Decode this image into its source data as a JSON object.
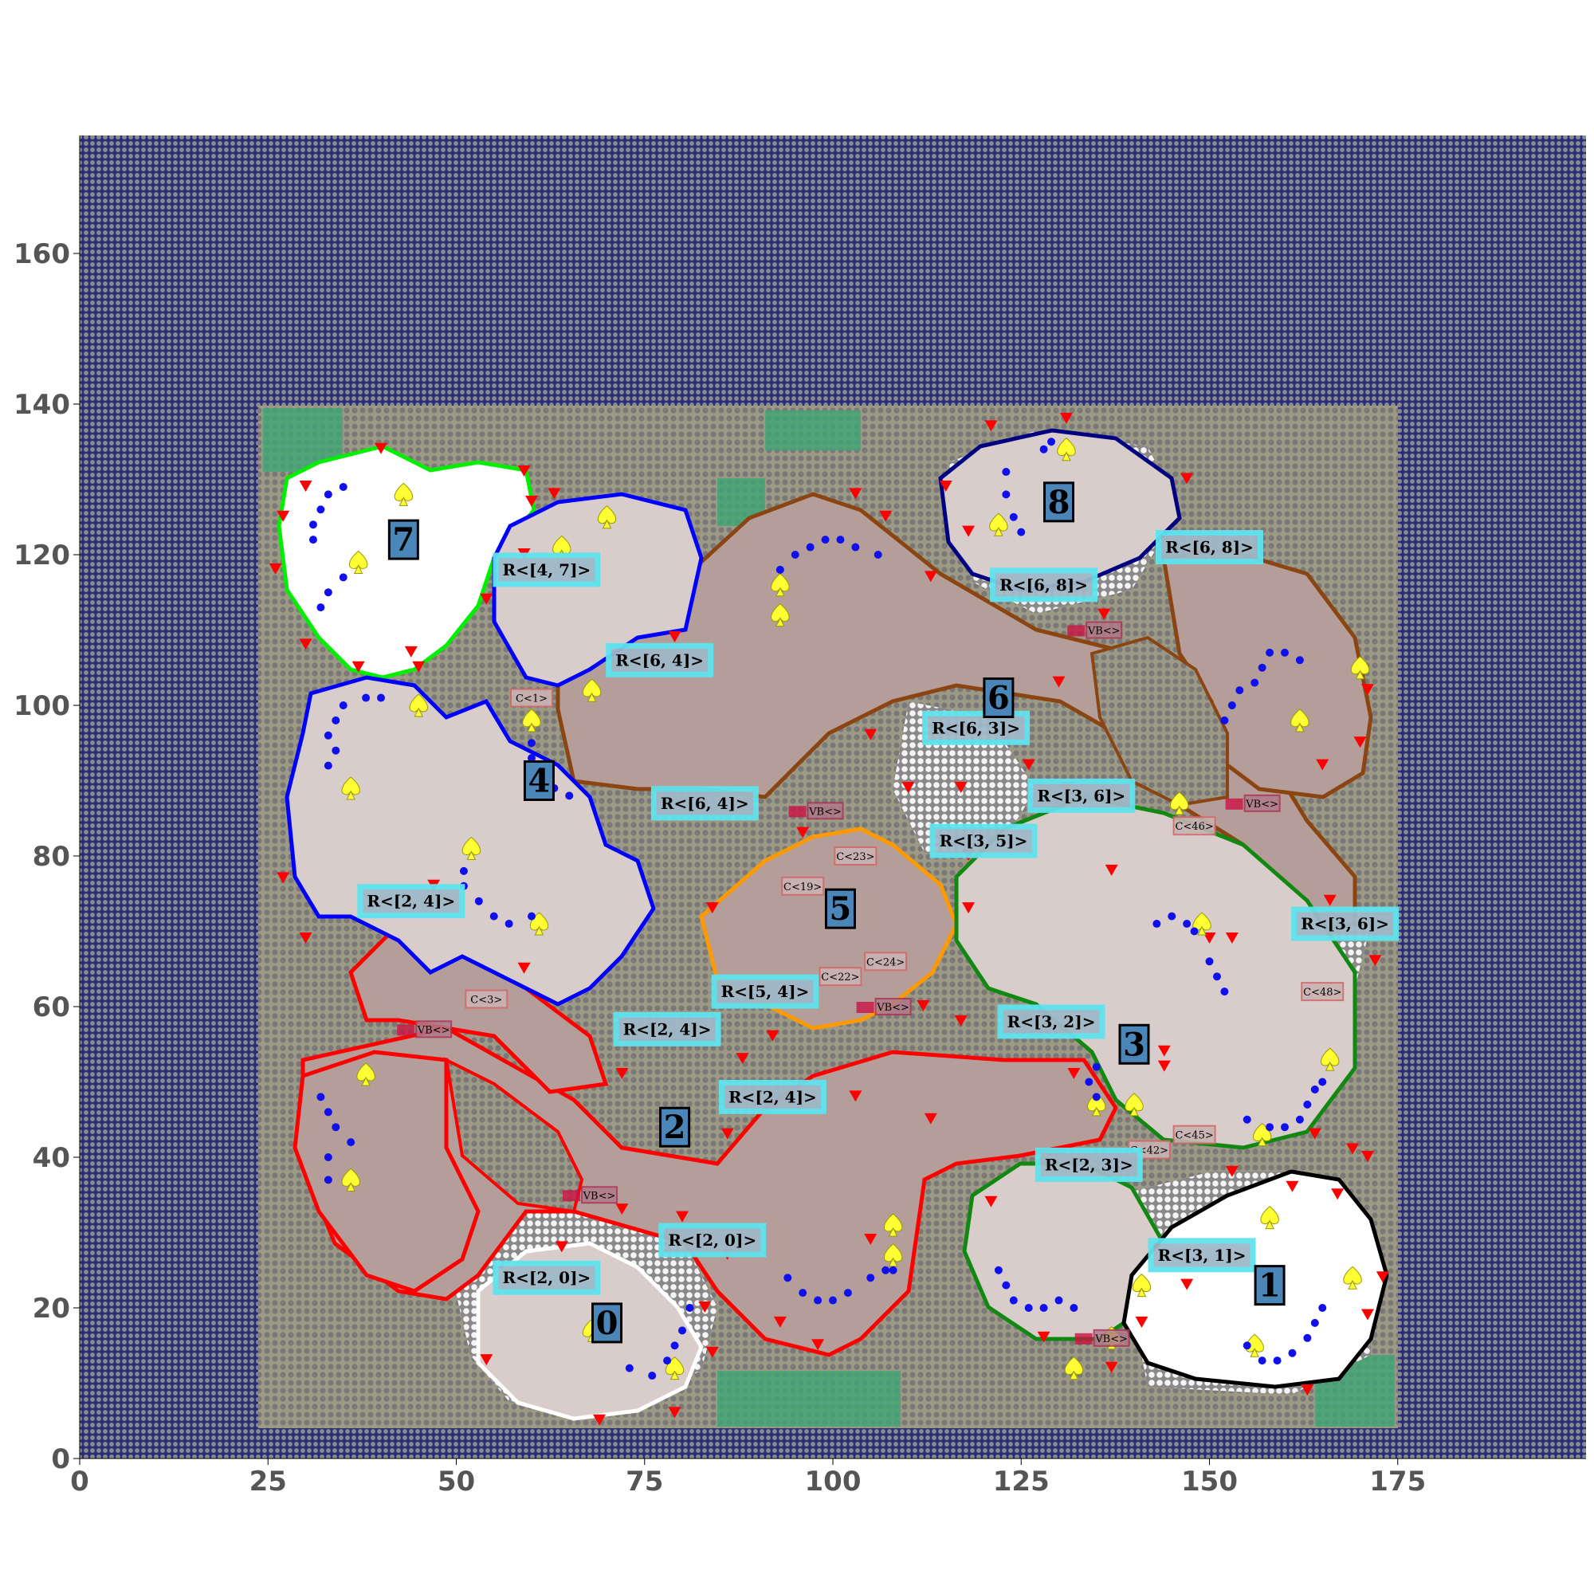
{
  "axes": {
    "x_ticks": [
      "0",
      "25",
      "50",
      "75",
      "100",
      "125",
      "150",
      "175"
    ],
    "y_ticks": [
      "0",
      "20",
      "40",
      "60",
      "80",
      "100",
      "120",
      "140",
      "160"
    ]
  },
  "colors": {
    "background_grid": "#2a2d7a",
    "land": "#7d7a7a",
    "corridor": "#b59e99",
    "room_fill": "#d9cdcb",
    "cyan_label": "#5fe3ee",
    "room_num_bg": "#4a86b8"
  },
  "rooms": [
    {
      "id": "0",
      "label": "0",
      "outline_color": "#ffffff",
      "x": 70,
      "y": 18
    },
    {
      "id": "1",
      "label": "1",
      "outline_color": "#000000",
      "x": 158,
      "y": 23
    },
    {
      "id": "2",
      "label": "2",
      "outline_color": "#ff0000",
      "x": 79,
      "y": 44
    },
    {
      "id": "3",
      "label": "3",
      "outline_color": "#118811",
      "x": 140,
      "y": 55
    },
    {
      "id": "4",
      "label": "4",
      "outline_color": "#0000ff",
      "x": 61,
      "y": 90
    },
    {
      "id": "5",
      "label": "5",
      "outline_color": "#ff9900",
      "x": 101,
      "y": 73
    },
    {
      "id": "6",
      "label": "6",
      "outline_color": "#8b4513",
      "x": 122,
      "y": 101
    },
    {
      "id": "7",
      "label": "7",
      "outline_color": "#00ee00",
      "x": 43,
      "y": 122
    },
    {
      "id": "8",
      "label": "8",
      "outline_color": "#000080",
      "x": 130,
      "y": 127
    }
  ],
  "region_labels": [
    {
      "text": "R<[2, 0]>",
      "x": 62,
      "y": 24
    },
    {
      "text": "R<[2, 0]>",
      "x": 84,
      "y": 29
    },
    {
      "text": "R<[3, 1]>",
      "x": 149,
      "y": 27
    },
    {
      "text": "R<[2, 3]>",
      "x": 134,
      "y": 39
    },
    {
      "text": "R<[2, 4]>",
      "x": 92,
      "y": 48
    },
    {
      "text": "R<[2, 4]>",
      "x": 78,
      "y": 57
    },
    {
      "text": "R<[5, 4]>",
      "x": 91,
      "y": 62
    },
    {
      "text": "R<[3, 2]>",
      "x": 129,
      "y": 58
    },
    {
      "text": "R<[2, 4]>",
      "x": 44,
      "y": 74
    },
    {
      "text": "R<[3, 6]>",
      "x": 168,
      "y": 71
    },
    {
      "text": "R<[3, 5]>",
      "x": 120,
      "y": 82
    },
    {
      "text": "R<[3, 6]>",
      "x": 133,
      "y": 88
    },
    {
      "text": "R<[6, 4]>",
      "x": 83,
      "y": 87
    },
    {
      "text": "R<[6, 3]>",
      "x": 119,
      "y": 97
    },
    {
      "text": "R<[6, 4]>",
      "x": 77,
      "y": 106
    },
    {
      "text": "R<[4, 7]>",
      "x": 62,
      "y": 118
    },
    {
      "text": "R<[6, 8]>",
      "x": 128,
      "y": 116
    },
    {
      "text": "R<[6, 8]>",
      "x": 150,
      "y": 121
    }
  ],
  "connector_labels": [
    {
      "text": "C<1>",
      "x": 60,
      "y": 101
    },
    {
      "text": "C<3>",
      "x": 54,
      "y": 61
    },
    {
      "text": "C<19>",
      "x": 96,
      "y": 76
    },
    {
      "text": "C<23>",
      "x": 103,
      "y": 80
    },
    {
      "text": "C<22>",
      "x": 101,
      "y": 64
    },
    {
      "text": "C<24>",
      "x": 107,
      "y": 66
    },
    {
      "text": "C<46>",
      "x": 148,
      "y": 84
    },
    {
      "text": "C<48>",
      "x": 165,
      "y": 62
    },
    {
      "text": "C<45>",
      "x": 148,
      "y": 43
    },
    {
      "text": "C<42>",
      "x": 142,
      "y": 41
    }
  ],
  "vb_labels": [
    {
      "text": "VB<>",
      "x": 99,
      "y": 86
    },
    {
      "text": "VB<>",
      "x": 136,
      "y": 110
    },
    {
      "text": "VB<>",
      "x": 157,
      "y": 87
    },
    {
      "text": "VB<>",
      "x": 108,
      "y": 60
    },
    {
      "text": "VB<>",
      "x": 47,
      "y": 57
    },
    {
      "text": "VB<>",
      "x": 69,
      "y": 35
    },
    {
      "text": "VB<>",
      "x": 137,
      "y": 16
    }
  ]
}
